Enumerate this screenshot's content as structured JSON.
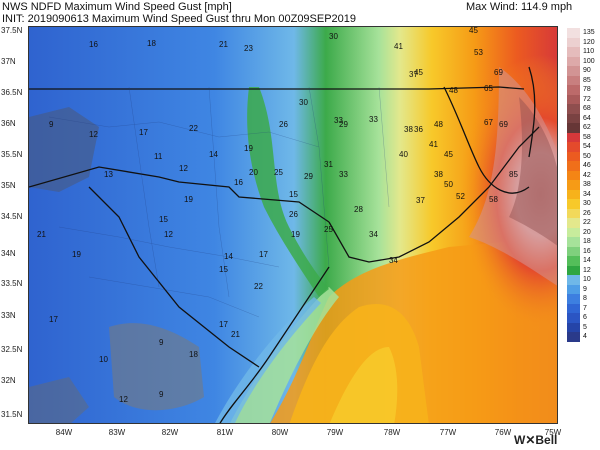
{
  "header": {
    "line1": "NWS NDFD Maximum Wind Speed Gust [mph]",
    "line2": "INIT: 2019090613 Maximum Wind Speed Gust thru Mon 00Z09SEP2019",
    "max_wind": "Max Wind: 114.9 mph"
  },
  "colorbar": {
    "labels": [
      "135",
      "120",
      "110",
      "100",
      "90",
      "85",
      "78",
      "72",
      "68",
      "64",
      "62",
      "58",
      "54",
      "50",
      "46",
      "42",
      "38",
      "34",
      "30",
      "26",
      "22",
      "20",
      "18",
      "16",
      "14",
      "12",
      "10",
      "9",
      "8",
      "7",
      "6",
      "5",
      "4"
    ],
    "colors": [
      "#f2e0e0",
      "#ecd0d0",
      "#e5bcbc",
      "#dda9a9",
      "#d29494",
      "#c87f7f",
      "#bc6a6a",
      "#a95a5a",
      "#8f4e4e",
      "#7a4242",
      "#663636",
      "#d6383a",
      "#e44a2c",
      "#ec5b20",
      "#f06f1a",
      "#f48515",
      "#f69b16",
      "#f7b21b",
      "#f7c92a",
      "#f2d95a",
      "#e3e88c",
      "#c7ec9c",
      "#a6e29a",
      "#7fd07d",
      "#54be5a",
      "#2fa642",
      "#6fb8e8",
      "#4f9ee6",
      "#3d7fe0",
      "#3066d4",
      "#2b55c3",
      "#2544a8",
      "#2a3a8a"
    ]
  },
  "axes": {
    "lat_labels": [
      "37.5N",
      "37N",
      "36.5N",
      "36N",
      "35.5N",
      "35N",
      "34.5N",
      "34N",
      "33.5N",
      "33N",
      "32.5N",
      "32N",
      "31.5N"
    ],
    "lon_labels": [
      "84W",
      "83W",
      "82W",
      "81W",
      "80W",
      "79W",
      "78W",
      "77W",
      "76W",
      "75W"
    ]
  },
  "wind_labels": [
    {
      "text": "16"
    },
    {
      "text": "18"
    },
    {
      "text": "21"
    },
    {
      "text": "23"
    },
    {
      "text": "30"
    },
    {
      "text": "41"
    },
    {
      "text": "45"
    },
    {
      "text": "53"
    },
    {
      "text": "9"
    },
    {
      "text": "12"
    },
    {
      "text": "17"
    },
    {
      "text": "22"
    },
    {
      "text": "19"
    },
    {
      "text": "37"
    },
    {
      "text": "45"
    },
    {
      "text": "48"
    },
    {
      "text": "65"
    },
    {
      "text": "69"
    },
    {
      "text": "30"
    },
    {
      "text": "33"
    },
    {
      "text": "36"
    },
    {
      "text": "48"
    },
    {
      "text": "67"
    },
    {
      "text": "69"
    },
    {
      "text": "26"
    },
    {
      "text": "29"
    },
    {
      "text": "33"
    },
    {
      "text": "38"
    },
    {
      "text": "41"
    },
    {
      "text": "45"
    },
    {
      "text": "85"
    },
    {
      "text": "11"
    },
    {
      "text": "14"
    },
    {
      "text": "20"
    },
    {
      "text": "25"
    },
    {
      "text": "31"
    },
    {
      "text": "40"
    },
    {
      "text": "50"
    },
    {
      "text": "13"
    },
    {
      "text": "12"
    },
    {
      "text": "15"
    },
    {
      "text": "16"
    },
    {
      "text": "29"
    },
    {
      "text": "33"
    },
    {
      "text": "38"
    },
    {
      "text": "58"
    },
    {
      "text": "15"
    },
    {
      "text": "12"
    },
    {
      "text": "19"
    },
    {
      "text": "26"
    },
    {
      "text": "28"
    },
    {
      "text": "37"
    },
    {
      "text": "52"
    },
    {
      "text": "21"
    },
    {
      "text": "19"
    },
    {
      "text": "14"
    },
    {
      "text": "17"
    },
    {
      "text": "19"
    },
    {
      "text": "25"
    },
    {
      "text": "34"
    },
    {
      "text": "17"
    },
    {
      "text": "15"
    },
    {
      "text": "22"
    },
    {
      "text": "34"
    },
    {
      "text": "17"
    },
    {
      "text": "21"
    },
    {
      "text": "9"
    },
    {
      "text": "18"
    },
    {
      "text": "10"
    },
    {
      "text": "12"
    },
    {
      "text": "9"
    }
  ],
  "logo": "W✕Bell"
}
